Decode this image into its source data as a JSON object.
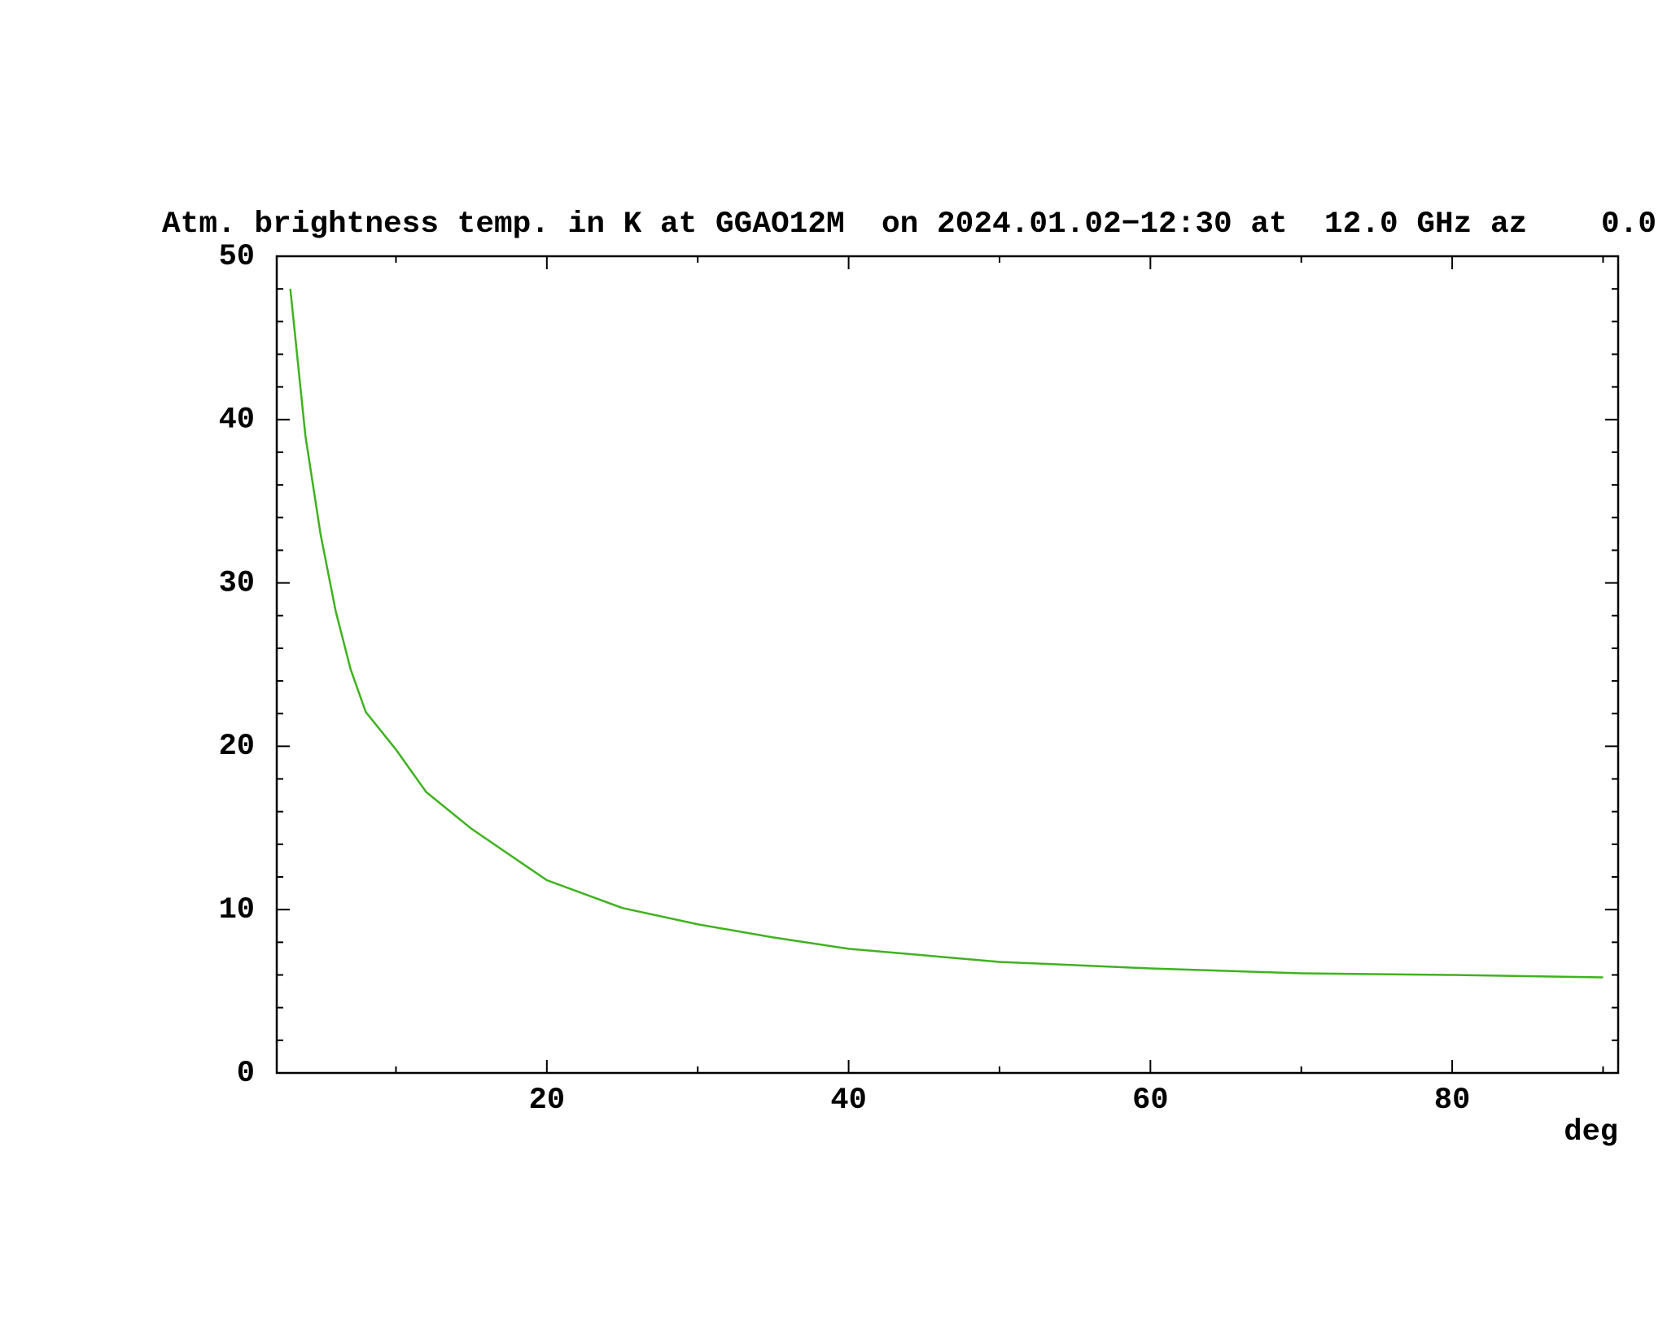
{
  "chart_data": {
    "type": "line",
    "title": "Atm. brightness temp. in K at GGAO12M  on 2024.01.02−12:30 at  12.0 GHz az    0.0",
    "x_label": "deg",
    "series": [
      {
        "color": "#3fb21f",
        "x": [
          3,
          3.5,
          4,
          5,
          6,
          7,
          8,
          10,
          12,
          15,
          20,
          25,
          30,
          35,
          40,
          50,
          60,
          70,
          80,
          90
        ],
        "values": [
          48,
          43.5,
          39,
          33,
          28.3,
          24.7,
          22.1,
          19.8,
          17.2,
          14.95,
          11.8,
          10.1,
          9.1,
          8.3,
          7.6,
          6.8,
          6.4,
          6.1,
          6.0,
          5.85
        ]
      }
    ],
    "xlim": [
      2.1,
      91
    ],
    "xticks": [
      20,
      40,
      60,
      80
    ],
    "x_minor_ticks": [
      10,
      30,
      50,
      70,
      90
    ],
    "ylim": [
      0,
      50
    ],
    "yticks": [
      0,
      10,
      20,
      30,
      40,
      50
    ],
    "y_minor_ticks": [
      2,
      4,
      6,
      8,
      12,
      14,
      16,
      18,
      22,
      24,
      26,
      28,
      32,
      34,
      36,
      38,
      42,
      44,
      46,
      48
    ]
  }
}
